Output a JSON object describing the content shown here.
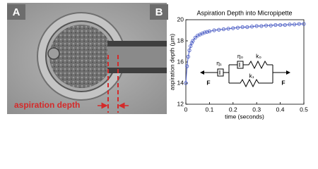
{
  "panel_labels": [
    "A",
    "B"
  ],
  "image_annotation": "aspiration depth",
  "chart_data": {
    "type": "line",
    "title": "Aspiration Depth into Micropipette",
    "x_label": "time (seconds)",
    "y_label": "aspiration depth (μm)",
    "x": [
      0,
      0.005,
      0.01,
      0.015,
      0.02,
      0.025,
      0.03,
      0.04,
      0.05,
      0.06,
      0.07,
      0.08,
      0.09,
      0.1,
      0.12,
      0.14,
      0.16,
      0.18,
      0.2,
      0.22,
      0.24,
      0.26,
      0.28,
      0.3,
      0.32,
      0.34,
      0.36,
      0.38,
      0.4,
      0.42,
      0.44,
      0.46,
      0.48,
      0.5
    ],
    "series": [
      {
        "color": "#4a5cc4",
        "values": [
          14.0,
          15.6,
          16.5,
          17.1,
          17.5,
          17.8,
          18.0,
          18.3,
          18.5,
          18.6,
          18.7,
          18.8,
          18.85,
          18.9,
          19.0,
          19.05,
          19.1,
          19.15,
          19.2,
          19.25,
          19.3,
          19.3,
          19.35,
          19.4,
          19.4,
          19.45,
          19.45,
          19.5,
          19.5,
          19.5,
          19.55,
          19.55,
          19.6,
          19.6
        ]
      }
    ],
    "xlim": [
      0,
      0.5
    ],
    "ylim": [
      12,
      20
    ],
    "xticks": [
      0,
      0.1,
      0.2,
      0.3,
      0.4,
      0.5
    ],
    "yticks": [
      12,
      14,
      16,
      18,
      20
    ],
    "model_labels": {
      "eta1": "η₁",
      "eta0": "η₀",
      "k0": "k₀",
      "k1": "k₁",
      "force_left": "F",
      "force_right": "F"
    }
  }
}
